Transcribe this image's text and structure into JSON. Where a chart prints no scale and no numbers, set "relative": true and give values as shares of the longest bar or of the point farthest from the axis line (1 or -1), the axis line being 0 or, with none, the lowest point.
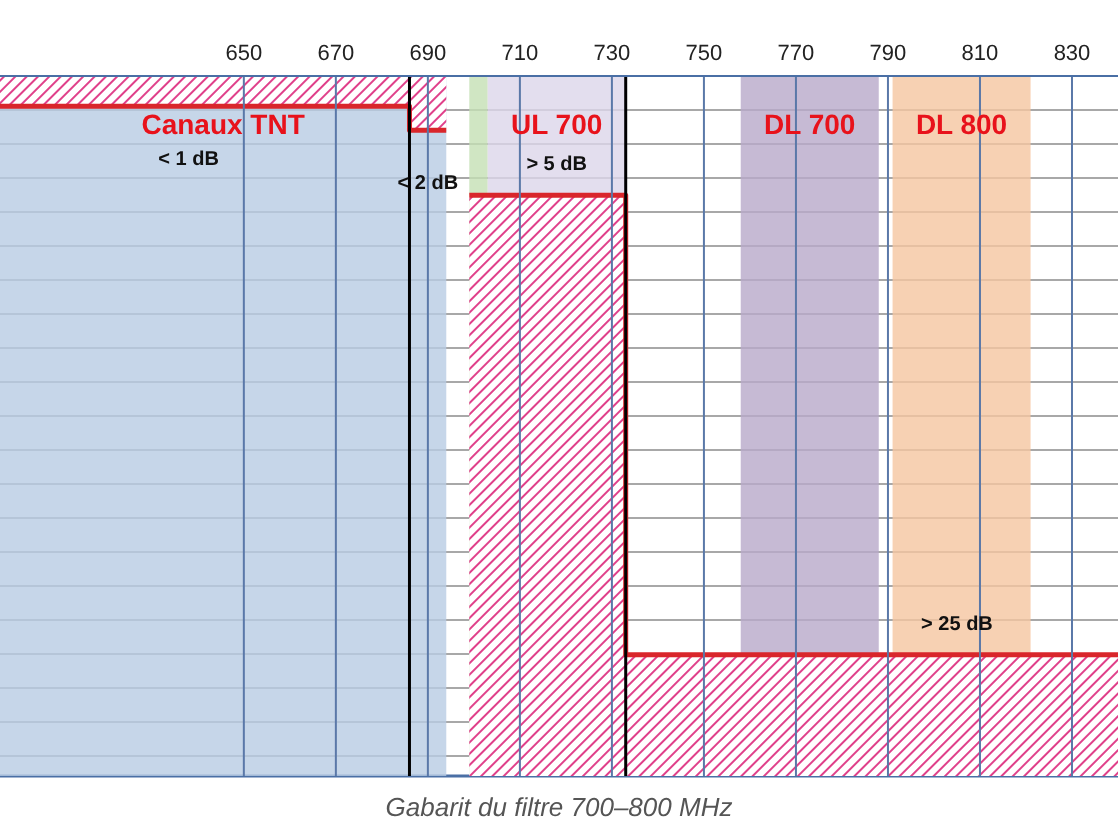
{
  "chart_data": {
    "type": "step",
    "relative": true,
    "xlim": [
      597,
      840
    ],
    "xticks": [
      650,
      670,
      690,
      710,
      730,
      750,
      770,
      790,
      810,
      830
    ],
    "series": [
      {
        "color": "#d9262b",
        "x": [
          597,
          686,
          694
        ],
        "values": [
          1,
          0.964,
          0.964
        ]
      },
      {
        "color": "#d9262b",
        "x": [
          699,
          733,
          840
        ],
        "values": [
          0.867,
          0.181,
          0.181
        ]
      }
    ],
    "bands": [
      {
        "axis": "x",
        "from": 597,
        "to": 694,
        "label": "Canaux TNT",
        "color": "#b8cce4"
      },
      {
        "axis": "x",
        "from": 699,
        "to": 703,
        "label": null,
        "color": "#c4e0b4"
      },
      {
        "axis": "x",
        "from": 703,
        "to": 733,
        "label": "UL 700",
        "color": "#dcd6ea"
      },
      {
        "axis": "x",
        "from": 758,
        "to": 788,
        "label": "DL 700",
        "color": "#b8a9c9"
      },
      {
        "axis": "x",
        "from": 791,
        "to": 821,
        "label": "DL 800",
        "color": "#f5c6a0"
      }
    ],
    "ref_lines": [
      {
        "axis": "x",
        "value": 686,
        "label": null,
        "color": "#000000"
      },
      {
        "axis": "x",
        "value": 733,
        "label": null,
        "color": "#000000"
      }
    ],
    "annotations": [
      {
        "text": "< 1 dB",
        "x": 638,
        "y": 1
      },
      {
        "text": "< 2 dB",
        "x": 690,
        "y": 0.964
      },
      {
        "text": "> 5 dB",
        "x": 718,
        "y": 0.867
      },
      {
        "text": "> 25 dB",
        "x": 805,
        "y": 0.181
      },
      "Gabarit du filtre 700–800 MHz"
    ],
    "grid": true,
    "legend": false
  }
}
